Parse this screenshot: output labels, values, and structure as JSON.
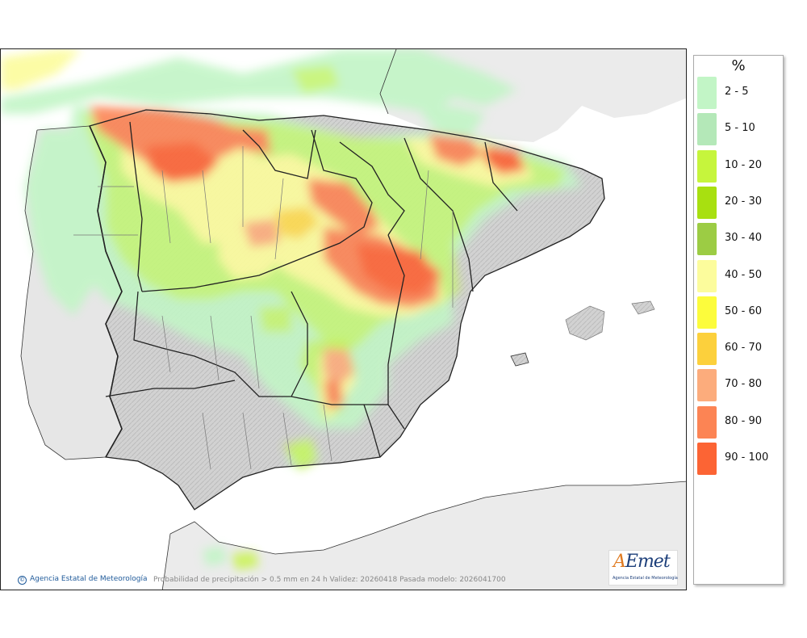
{
  "map": {
    "description_unit": "%",
    "caption": "Probabilidad de precipitación > 0.5 mm en 24 h Validez: 20260418 Pasada modelo: 2026041700",
    "credit": "Agencia Estatal de Meteorología",
    "credit_symbol": "©"
  },
  "legend": {
    "title": "%",
    "items": [
      {
        "label": "2 - 5",
        "color": "#c2f5c6"
      },
      {
        "label": "5 - 10",
        "color": "#b4e8b8"
      },
      {
        "label": "10 - 20",
        "color": "#c6f53c"
      },
      {
        "label": "20 - 30",
        "color": "#a8e010"
      },
      {
        "label": "30 - 40",
        "color": "#9ccc44"
      },
      {
        "label": "40 - 50",
        "color": "#fcfc9c"
      },
      {
        "label": "50 - 60",
        "color": "#fcfc3c"
      },
      {
        "label": "60 - 70",
        "color": "#fcd03c"
      },
      {
        "label": "70 - 80",
        "color": "#fcac7c"
      },
      {
        "label": "80 - 90",
        "color": "#fc8454"
      },
      {
        "label": "90 - 100",
        "color": "#fc6434"
      }
    ]
  },
  "logo": {
    "word_a": "A",
    "word_rest": "Emet",
    "sub": "Agencia Estatal de Meteorología"
  }
}
